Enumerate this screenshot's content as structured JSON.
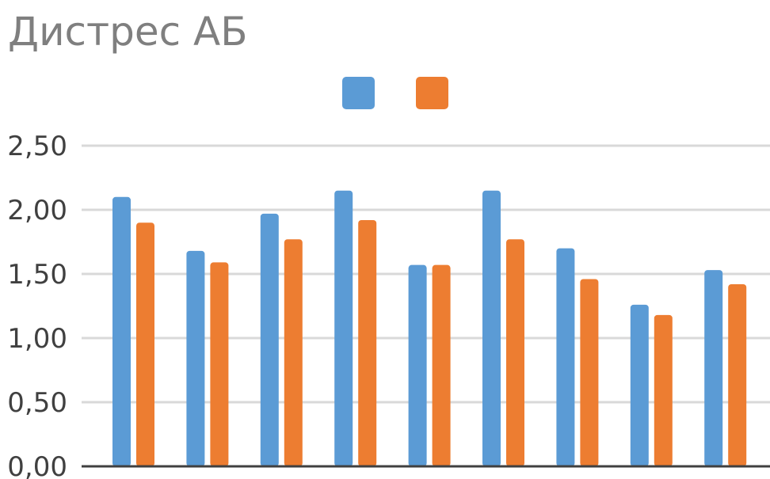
{
  "chart_data": {
    "type": "bar",
    "title": "Дистрес АБ",
    "xlabel": "",
    "ylabel": "",
    "categories": [
      "",
      "",
      "",
      "",
      "",
      "",
      "",
      "",
      ""
    ],
    "ylim": [
      0,
      2.5
    ],
    "yticks": [
      "0,00",
      "0,50",
      "1,00",
      "1,50",
      "2,00",
      "2,50"
    ],
    "grid": true,
    "legend": "top-center",
    "series": [
      {
        "color": "#5b9bd5",
        "values": [
          2.1,
          1.68,
          1.97,
          2.15,
          1.57,
          2.15,
          1.7,
          1.26,
          1.53
        ]
      },
      {
        "color": "#ed7d31",
        "values": [
          1.9,
          1.59,
          1.77,
          1.92,
          1.57,
          1.77,
          1.46,
          1.18,
          1.42
        ]
      }
    ],
    "colors": {
      "gridline": "#d9d9d9",
      "axis": "#404040",
      "title": "#7f7f7f"
    }
  }
}
